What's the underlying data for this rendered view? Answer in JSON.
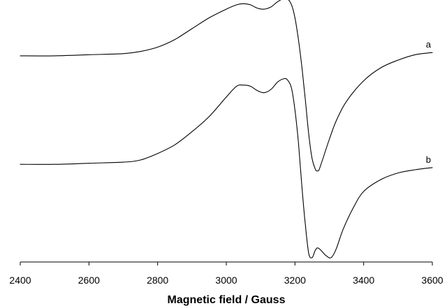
{
  "chart_data": {
    "type": "line",
    "xlabel": "Magnetic field / Gauss",
    "ylabel": "",
    "title": "",
    "xlim": [
      2400,
      3600
    ],
    "ylim": [
      -0.9,
      1.45
    ],
    "xticks": [
      "2400",
      "2600",
      "2800",
      "3000",
      "3200",
      "3400",
      "3600"
    ],
    "y_axis_shown": false,
    "grid": false,
    "legend": "none",
    "series": [
      {
        "name": "a",
        "points": [
          [
            2400,
            1.0
          ],
          [
            2500,
            1.0
          ],
          [
            2600,
            1.01
          ],
          [
            2700,
            1.02
          ],
          [
            2750,
            1.04
          ],
          [
            2800,
            1.08
          ],
          [
            2850,
            1.15
          ],
          [
            2900,
            1.25
          ],
          [
            2950,
            1.35
          ],
          [
            3000,
            1.43
          ],
          [
            3030,
            1.47
          ],
          [
            3050,
            1.48
          ],
          [
            3070,
            1.47
          ],
          [
            3090,
            1.44
          ],
          [
            3110,
            1.43
          ],
          [
            3130,
            1.45
          ],
          [
            3150,
            1.5
          ],
          [
            3170,
            1.53
          ],
          [
            3180,
            1.52
          ],
          [
            3190,
            1.47
          ],
          [
            3200,
            1.35
          ],
          [
            3210,
            1.15
          ],
          [
            3220,
            0.9
          ],
          [
            3230,
            0.6
          ],
          [
            3240,
            0.28
          ],
          [
            3250,
            0.05
          ],
          [
            3260,
            -0.05
          ],
          [
            3265,
            -0.06
          ],
          [
            3270,
            -0.05
          ],
          [
            3280,
            0.04
          ],
          [
            3300,
            0.23
          ],
          [
            3320,
            0.4
          ],
          [
            3350,
            0.58
          ],
          [
            3400,
            0.77
          ],
          [
            3450,
            0.89
          ],
          [
            3500,
            0.96
          ],
          [
            3550,
            1.01
          ],
          [
            3600,
            1.03
          ]
        ]
      },
      {
        "name": "b",
        "points": [
          [
            2400,
            0.0
          ],
          [
            2500,
            0.0
          ],
          [
            2600,
            0.01
          ],
          [
            2700,
            0.02
          ],
          [
            2750,
            0.04
          ],
          [
            2800,
            0.1
          ],
          [
            2850,
            0.18
          ],
          [
            2900,
            0.3
          ],
          [
            2950,
            0.44
          ],
          [
            3000,
            0.62
          ],
          [
            3030,
            0.72
          ],
          [
            3050,
            0.73
          ],
          [
            3070,
            0.72
          ],
          [
            3090,
            0.68
          ],
          [
            3110,
            0.66
          ],
          [
            3130,
            0.69
          ],
          [
            3150,
            0.76
          ],
          [
            3170,
            0.79
          ],
          [
            3180,
            0.77
          ],
          [
            3190,
            0.7
          ],
          [
            3200,
            0.5
          ],
          [
            3210,
            0.2
          ],
          [
            3220,
            -0.2
          ],
          [
            3230,
            -0.55
          ],
          [
            3240,
            -0.82
          ],
          [
            3250,
            -0.86
          ],
          [
            3258,
            -0.8
          ],
          [
            3265,
            -0.77
          ],
          [
            3275,
            -0.79
          ],
          [
            3290,
            -0.84
          ],
          [
            3305,
            -0.86
          ],
          [
            3320,
            -0.78
          ],
          [
            3340,
            -0.6
          ],
          [
            3370,
            -0.4
          ],
          [
            3400,
            -0.25
          ],
          [
            3450,
            -0.14
          ],
          [
            3500,
            -0.08
          ],
          [
            3550,
            -0.05
          ],
          [
            3600,
            -0.03
          ]
        ]
      }
    ]
  }
}
